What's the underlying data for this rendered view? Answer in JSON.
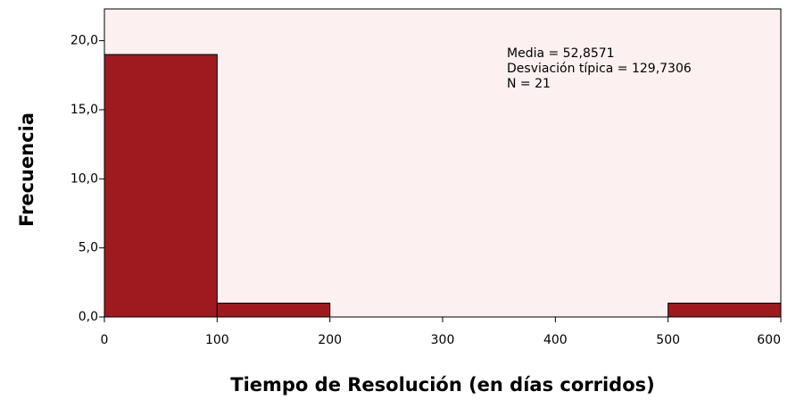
{
  "chart_data": {
    "type": "histogram",
    "xlabel": "Tiempo de Resolución (en días corridos)",
    "ylabel": "Frecuencia",
    "bins": [
      0,
      100,
      200,
      300,
      400,
      500,
      600
    ],
    "counts": [
      19,
      1,
      0,
      0,
      0,
      1
    ],
    "color": "#9e1a1f",
    "background": "#fcf0f0",
    "xlim": [
      0,
      600
    ],
    "xticks": [
      0,
      100,
      200,
      300,
      400,
      500,
      600
    ],
    "ylim": [
      0,
      22.3
    ],
    "yticks": [
      {
        "value": 0,
        "label": "0,0"
      },
      {
        "value": 5,
        "label": "5,0"
      },
      {
        "value": 10,
        "label": "10,0"
      },
      {
        "value": 15,
        "label": "15,0"
      },
      {
        "value": 20,
        "label": "20,0"
      }
    ],
    "annotations": [
      "Media = 52,8571",
      "Desviación típica = 129,7306",
      "N = 21"
    ]
  }
}
